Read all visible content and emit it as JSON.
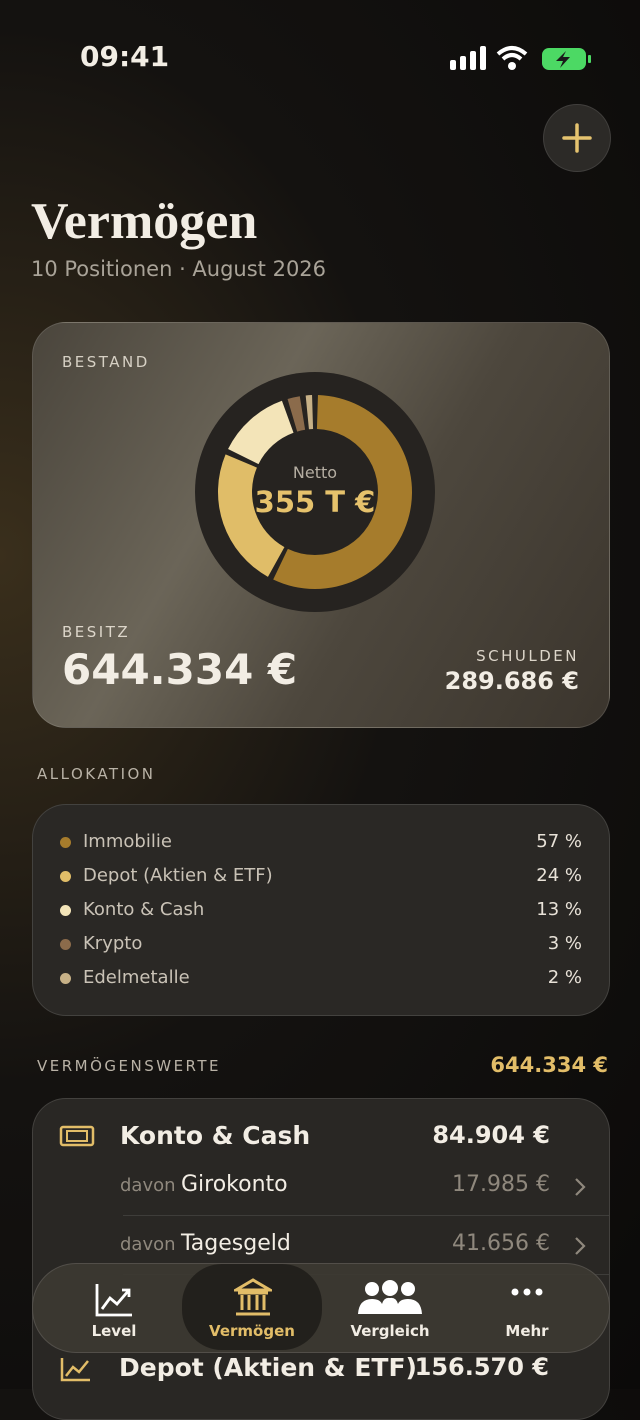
{
  "status_bar": {
    "time": "09:41"
  },
  "header": {
    "title": "Vermögen",
    "subtitle": "10 Positionen · August 2026"
  },
  "summary": {
    "label": "BESTAND",
    "center_label": "Netto",
    "center_value": "355 T €",
    "assets_label": "BESITZ",
    "assets_value": "644.334 €",
    "debts_label": "SCHULDEN",
    "debts_value": "289.686 €"
  },
  "allocation": {
    "title": "ALLOKATION",
    "items": [
      {
        "name": "Immobilie",
        "value": 57,
        "label": "57 %",
        "color": "#a67c2c"
      },
      {
        "name": "Depot (Aktien & ETF)",
        "value": 24,
        "label": "24 %",
        "color": "#e0bd68"
      },
      {
        "name": "Konto & Cash",
        "value": 13,
        "label": "13 %",
        "color": "#f3e4b8"
      },
      {
        "name": "Krypto",
        "value": 3,
        "label": "3 %",
        "color": "#8b6b4b"
      },
      {
        "name": "Edelmetalle",
        "value": 2,
        "label": "2 %",
        "color": "#c7b187"
      }
    ]
  },
  "assets": {
    "title": "VERMÖGENSWERTE",
    "total": "644.334 €",
    "groups": [
      {
        "name": "Konto & Cash",
        "amount": "84.904 €",
        "accounts": [
          {
            "prefix": "davon",
            "name": "Girokonto",
            "amount": "17.985 €"
          },
          {
            "prefix": "davon",
            "name": "Tagesgeld",
            "amount": "41.656 €"
          }
        ]
      },
      {
        "name": "Depot (Aktien & ETF)",
        "amount": "156.570 €"
      }
    ]
  },
  "tab_bar": {
    "items": [
      "Level",
      "Vermögen",
      "Vergleich",
      "Mehr"
    ],
    "selected": 1
  }
}
